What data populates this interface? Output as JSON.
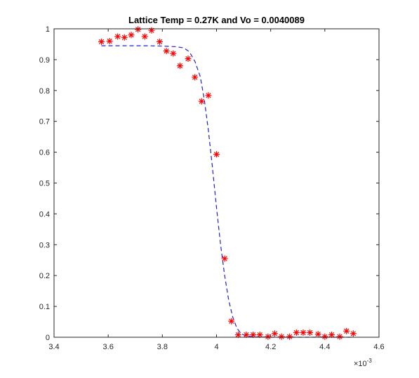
{
  "chart_data": {
    "type": "scatter",
    "title": "Lattice Temp = 0.27K and Vo = 0.0040089",
    "xlabel": "",
    "ylabel": "",
    "x_exponent": "×10",
    "x_exponent_power": "-3",
    "xlim": [
      3.4,
      4.6
    ],
    "ylim": [
      0,
      1
    ],
    "x_ticks": [
      3.4,
      3.6,
      3.8,
      4.0,
      4.2,
      4.4,
      4.6
    ],
    "x_tick_labels": [
      "3.4",
      "3.6",
      "3.8",
      "4",
      "4.2",
      "4.4",
      "4.6"
    ],
    "y_ticks": [
      0,
      0.1,
      0.2,
      0.3,
      0.4,
      0.5,
      0.6,
      0.7,
      0.8,
      0.9,
      1
    ],
    "y_tick_labels": [
      "0",
      "0.1",
      "0.2",
      "0.3",
      "0.4",
      "0.5",
      "0.6",
      "0.7",
      "0.8",
      "0.9",
      "1"
    ],
    "grid": false,
    "box": true,
    "series": [
      {
        "style": "markers",
        "marker": "asterisk",
        "color": "#ff0000",
        "x": [
          3.575,
          3.605,
          3.635,
          3.66,
          3.685,
          3.71,
          3.735,
          3.76,
          3.79,
          3.815,
          3.84,
          3.865,
          3.895,
          3.92,
          3.945,
          3.97,
          4.0,
          4.03,
          4.055,
          4.08,
          4.11,
          4.135,
          4.16,
          4.19,
          4.215,
          4.24,
          4.27,
          4.295,
          4.32,
          4.345,
          4.375,
          4.4,
          4.425,
          4.455,
          4.48,
          4.505
        ],
        "y": [
          0.958,
          0.96,
          0.975,
          0.972,
          0.98,
          0.998,
          0.975,
          0.995,
          0.958,
          0.928,
          0.92,
          0.88,
          0.903,
          0.843,
          0.765,
          0.784,
          0.593,
          0.255,
          0.052,
          0.008,
          0.008,
          0.008,
          0.008,
          0.002,
          0.012,
          0.002,
          0.002,
          0.015,
          0.015,
          0.015,
          0.01,
          0.002,
          0.008,
          0.002,
          0.02,
          0.012
        ]
      },
      {
        "style": "dashed-line",
        "color": "#1f1fd2",
        "x": [
          3.575,
          3.6,
          3.65,
          3.7,
          3.75,
          3.8,
          3.85,
          3.88,
          3.9,
          3.92,
          3.94,
          3.955,
          3.97,
          3.985,
          4.0,
          4.015,
          4.03,
          4.045,
          4.06,
          4.075,
          4.09,
          4.11,
          4.14,
          4.2,
          4.3,
          4.4,
          4.505
        ],
        "y": [
          0.945,
          0.945,
          0.945,
          0.945,
          0.945,
          0.944,
          0.942,
          0.938,
          0.925,
          0.895,
          0.845,
          0.77,
          0.67,
          0.55,
          0.42,
          0.3,
          0.2,
          0.12,
          0.065,
          0.03,
          0.012,
          0.004,
          0.001,
          0.0,
          0.0,
          0.0,
          0.0
        ]
      }
    ]
  }
}
